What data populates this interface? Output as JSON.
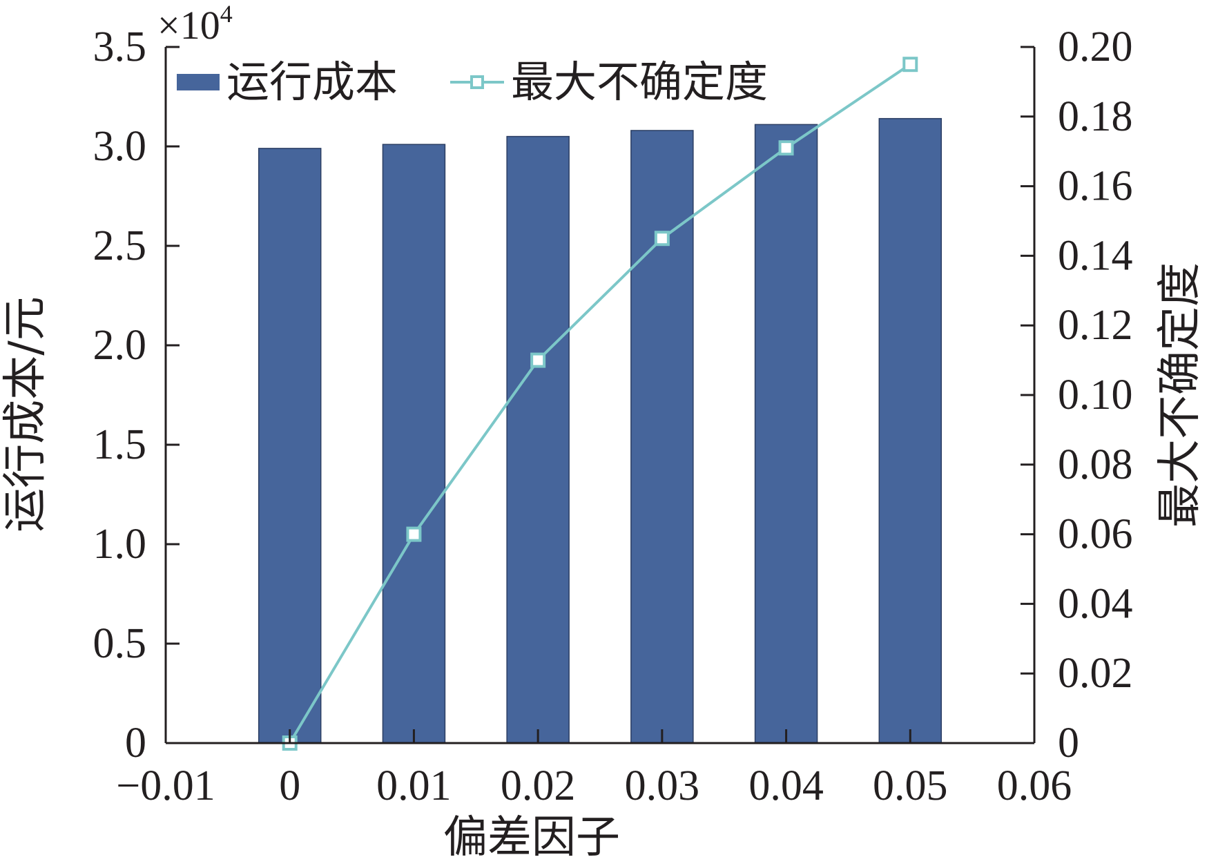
{
  "chart_data": {
    "type": "bar+line",
    "xlabel": "偏差因子",
    "ylabel_left": "运行成本/元",
    "ylabel_right": "最大不确定度",
    "left_multiplier": "×10",
    "left_multiplier_exp": "4",
    "xlim": [
      -0.01,
      0.06
    ],
    "x_ticks": [
      -0.01,
      0,
      0.01,
      0.02,
      0.03,
      0.04,
      0.05,
      0.06
    ],
    "x_tick_labels": [
      "−0.01",
      "0",
      "0.01",
      "0.02",
      "0.03",
      "0.04",
      "0.05",
      "0.06"
    ],
    "ylim_left": [
      0,
      3.5
    ],
    "y_left_ticks": [
      0,
      0.5,
      1.0,
      1.5,
      2.0,
      2.5,
      3.0,
      3.5
    ],
    "y_left_tick_labels": [
      "0",
      "0.5",
      "1.0",
      "1.5",
      "2.0",
      "2.5",
      "3.0",
      "3.5"
    ],
    "ylim_right": [
      0,
      0.2
    ],
    "y_right_ticks": [
      0,
      0.02,
      0.04,
      0.06,
      0.08,
      0.1,
      0.12,
      0.14,
      0.16,
      0.18,
      0.2
    ],
    "y_right_tick_labels": [
      "0",
      "0.02",
      "0.04",
      "0.06",
      "0.08",
      "0.10",
      "0.12",
      "0.14",
      "0.16",
      "0.18",
      "0.20"
    ],
    "x": [
      0,
      0.01,
      0.02,
      0.03,
      0.04,
      0.05
    ],
    "series": [
      {
        "name": "运行成本",
        "type": "bar",
        "axis": "left",
        "color": "#46659b",
        "values": [
          2.99,
          3.01,
          3.05,
          3.08,
          3.11,
          3.14
        ]
      },
      {
        "name": "最大不确定度",
        "type": "line",
        "axis": "right",
        "color": "#7cc7c8",
        "marker": "square",
        "values": [
          0,
          0.06,
          0.11,
          0.145,
          0.171,
          0.195
        ]
      }
    ],
    "legend_position": "top-left",
    "grid": false
  }
}
